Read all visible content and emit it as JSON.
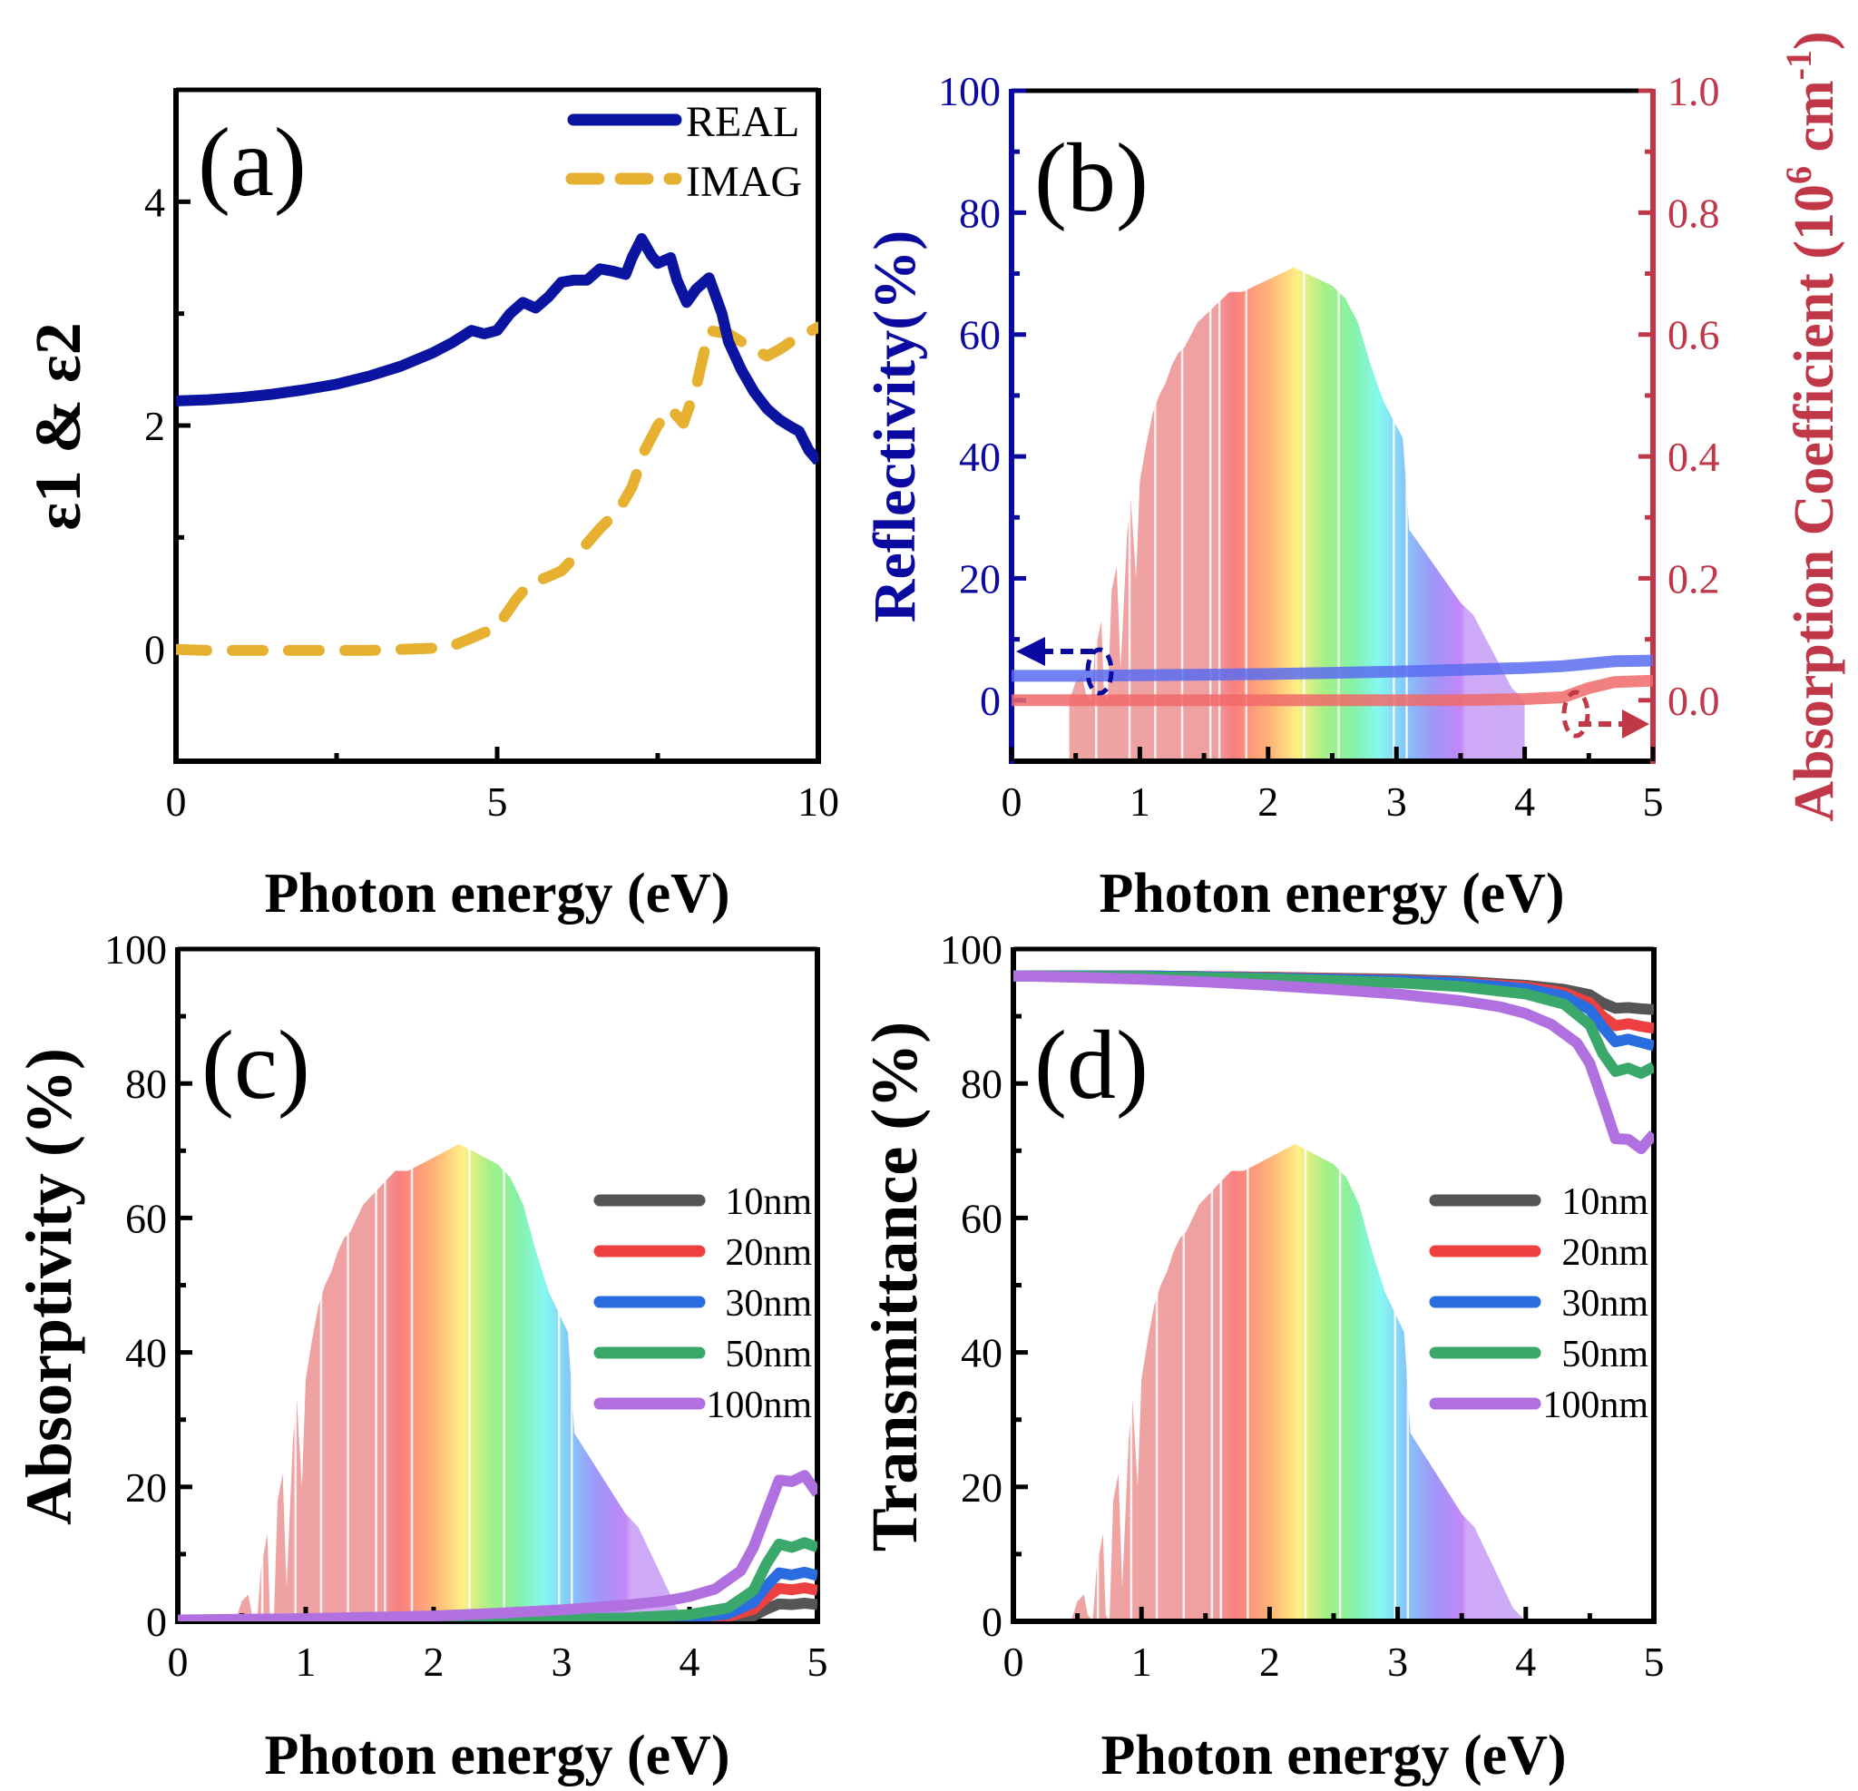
{
  "figure": {
    "colors": {
      "real": "#0a14a0",
      "imag": "#e6b030",
      "reflectivity_axis": "#0a0aa0",
      "absorption_axis": "#c03848",
      "reflectivity_line": "#5a6cf0",
      "absorption_line": "#f06a6a",
      "thickness": {
        "10nm": "#555555",
        "20nm": "#ee4040",
        "30nm": "#2a6de0",
        "50nm": "#3aa86a",
        "100nm": "#b070e0"
      }
    }
  },
  "solar_spectrum": {
    "note_label": "AM1.5 solar spectrum (decorative, rainbow-filled)",
    "x": [
      0.45,
      0.5,
      0.55,
      0.58,
      0.62,
      0.65,
      0.7,
      0.72,
      0.75,
      0.78,
      0.82,
      0.85,
      0.9,
      0.93,
      0.97,
      1.0,
      1.05,
      1.1,
      1.15,
      1.2,
      1.25,
      1.3,
      1.35,
      1.4,
      1.45,
      1.5,
      1.55,
      1.6,
      1.65,
      1.7,
      1.8,
      1.9,
      2.0,
      2.1,
      2.2,
      2.3,
      2.4,
      2.5,
      2.6,
      2.7,
      2.8,
      2.9,
      3.0,
      3.05,
      3.1,
      3.2,
      3.3,
      3.4,
      3.5,
      3.6,
      3.7,
      3.8,
      3.9,
      4.0
    ],
    "y": [
      0,
      3,
      4,
      1,
      0,
      8,
      13,
      1,
      0,
      18,
      22,
      5,
      27,
      33,
      20,
      36,
      42,
      47,
      50,
      52,
      55,
      57,
      58,
      60,
      62,
      63,
      64,
      65,
      66,
      67,
      67,
      68,
      69,
      70,
      71,
      70,
      69,
      68,
      66,
      62,
      55,
      49,
      45,
      43,
      28,
      25,
      22,
      19,
      16,
      14,
      10,
      6,
      2,
      0
    ]
  },
  "chart_data": [
    {
      "panel": "a",
      "type": "line",
      "title": "",
      "panel_label": "(a)",
      "xlabel": "Photon energy (eV)",
      "ylabel": "ε1 & ε2",
      "xlim": [
        0,
        10
      ],
      "ylim": [
        -1,
        5
      ],
      "xticks": [
        0,
        5,
        10
      ],
      "xtick_labels": [
        "0",
        "5",
        "10"
      ],
      "xticks_minor": [
        2.5,
        7.5
      ],
      "yticks": [
        0,
        2,
        4
      ],
      "ytick_labels": [
        "0",
        "2",
        "4"
      ],
      "yticks_minor": [
        1,
        3
      ],
      "legend": {
        "position": "top-right",
        "entries": [
          "REAL",
          "IMAG"
        ]
      },
      "series": [
        {
          "name": "REAL",
          "style": "solid",
          "x": [
            0,
            0.5,
            1,
            1.5,
            2,
            2.5,
            3,
            3.5,
            4,
            4.3,
            4.6,
            4.8,
            5.0,
            5.2,
            5.4,
            5.6,
            5.8,
            6.0,
            6.2,
            6.4,
            6.6,
            6.8,
            7.0,
            7.1,
            7.25,
            7.4,
            7.5,
            7.7,
            7.8,
            7.95,
            8.1,
            8.3,
            8.5,
            8.6,
            8.8,
            9.0,
            9.2,
            9.4,
            9.6,
            9.7,
            9.85,
            10
          ],
          "y": [
            2.22,
            2.23,
            2.25,
            2.28,
            2.32,
            2.37,
            2.44,
            2.53,
            2.65,
            2.74,
            2.85,
            2.82,
            2.85,
            3.0,
            3.1,
            3.05,
            3.15,
            3.28,
            3.3,
            3.3,
            3.4,
            3.38,
            3.35,
            3.5,
            3.67,
            3.52,
            3.45,
            3.5,
            3.3,
            3.1,
            3.22,
            3.32,
            3.0,
            2.75,
            2.5,
            2.3,
            2.15,
            2.05,
            1.98,
            1.95,
            1.78,
            1.68
          ]
        },
        {
          "name": "IMAG",
          "style": "dashed",
          "x": [
            0,
            0.5,
            1,
            1.5,
            2,
            2.5,
            3,
            3.5,
            4,
            4.3,
            4.6,
            5.0,
            5.3,
            5.5,
            5.8,
            6.0,
            6.3,
            6.6,
            6.9,
            7.1,
            7.3,
            7.5,
            7.7,
            7.9,
            8.1,
            8.3,
            8.6,
            8.8,
            9.0,
            9.2,
            9.4,
            9.6,
            9.8,
            10
          ],
          "y": [
            0,
            -0.01,
            -0.01,
            -0.01,
            -0.01,
            -0.01,
            -0.01,
            0.0,
            0.01,
            0.03,
            0.1,
            0.2,
            0.45,
            0.58,
            0.65,
            0.7,
            0.88,
            1.08,
            1.25,
            1.45,
            1.78,
            2.0,
            2.15,
            2.02,
            2.35,
            2.85,
            2.82,
            2.75,
            2.68,
            2.62,
            2.68,
            2.76,
            2.82,
            2.88
          ]
        }
      ]
    },
    {
      "panel": "b",
      "type": "line",
      "title": "",
      "panel_label": "(b)",
      "xlabel": "Photon energy (eV)",
      "ylabel": "Reflectivity(%)",
      "ylabel_right": "Absorption Coefficient (10⁶ cm⁻¹)",
      "ylabel_right_parts": {
        "pre": "Absorption Coefficient (10",
        "sup1": "6",
        "mid": " cm",
        "sup2": "-1",
        "post": ")"
      },
      "xlim": [
        0,
        5
      ],
      "ylim": [
        -10,
        100
      ],
      "ylim_right": [
        -0.1,
        1.0
      ],
      "xticks": [
        0,
        1,
        2,
        3,
        4,
        5
      ],
      "xtick_labels": [
        "0",
        "1",
        "2",
        "3",
        "4",
        "5"
      ],
      "xticks_minor": [
        0.5,
        1.5,
        2.5,
        3.5,
        4.5
      ],
      "yticks": [
        0,
        20,
        40,
        60,
        80,
        100
      ],
      "ytick_labels": [
        "0",
        "20",
        "40",
        "60",
        "80",
        "100"
      ],
      "yticks_minor": [
        10,
        30,
        50,
        70,
        90
      ],
      "yticks_right": [
        0.0,
        0.2,
        0.4,
        0.6,
        0.8,
        1.0
      ],
      "ytick_labels_right": [
        "0.0",
        "0.2",
        "0.4",
        "0.6",
        "0.8",
        "1.0"
      ],
      "yticks_right_minor": [
        0.1,
        0.3,
        0.5,
        0.7,
        0.9
      ],
      "annotations": [
        "left arrow marks Reflectivity curve → left axis",
        "right arrow marks Absorption curve → right axis"
      ],
      "series": [
        {
          "name": "Reflectivity",
          "axis": "left",
          "x": [
            0,
            0.5,
            1,
            1.5,
            2,
            2.5,
            3,
            3.5,
            4,
            4.3,
            4.5,
            4.7,
            5
          ],
          "y": [
            4.0,
            4.0,
            4.1,
            4.2,
            4.3,
            4.5,
            4.7,
            5.0,
            5.3,
            5.6,
            6.0,
            6.4,
            6.5
          ]
        },
        {
          "name": "Absorption coefficient",
          "axis": "right",
          "x": [
            0,
            0.5,
            1,
            1.5,
            2,
            2.5,
            3,
            3.5,
            4,
            4.3,
            4.5,
            4.7,
            5
          ],
          "y": [
            0.0,
            0.0,
            0.0,
            0.0,
            0.0,
            0.0,
            0.0,
            0.0,
            0.002,
            0.005,
            0.02,
            0.03,
            0.032
          ]
        }
      ]
    },
    {
      "panel": "c",
      "type": "line",
      "title": "",
      "panel_label": "(c)",
      "xlabel": "Photon energy (eV)",
      "ylabel": "Absorptivity (%)",
      "xlim": [
        0,
        5
      ],
      "ylim": [
        0,
        100
      ],
      "xticks": [
        0,
        1,
        2,
        3,
        4,
        5
      ],
      "xtick_labels": [
        "0",
        "1",
        "2",
        "3",
        "4",
        "5"
      ],
      "xticks_minor": [
        0.5,
        1.5,
        2.5,
        3.5,
        4.5
      ],
      "yticks": [
        0,
        20,
        40,
        60,
        80,
        100
      ],
      "ytick_labels": [
        "0",
        "20",
        "40",
        "60",
        "80",
        "100"
      ],
      "yticks_minor": [
        10,
        30,
        50,
        70,
        90
      ],
      "legend": {
        "position": "center-right",
        "entries": [
          "10nm",
          "20nm",
          "30nm",
          "50nm",
          "100nm"
        ]
      },
      "series": [
        {
          "name": "10nm",
          "x": [
            0,
            1,
            2,
            3,
            3.5,
            4,
            4.3,
            4.5,
            4.6,
            4.7,
            4.8,
            4.9,
            5
          ],
          "y": [
            0,
            0,
            0.02,
            0.05,
            0.08,
            0.15,
            0.3,
            0.8,
            1.8,
            2.6,
            2.5,
            2.7,
            2.5
          ]
        },
        {
          "name": "20nm",
          "x": [
            0,
            1,
            2,
            3,
            3.5,
            4,
            4.3,
            4.5,
            4.6,
            4.7,
            4.8,
            4.9,
            5
          ],
          "y": [
            0,
            0.02,
            0.05,
            0.1,
            0.16,
            0.3,
            0.7,
            1.8,
            3.5,
            4.9,
            4.7,
            5.0,
            4.6
          ]
        },
        {
          "name": "30nm",
          "x": [
            0,
            1,
            2,
            3,
            3.5,
            4,
            4.3,
            4.5,
            4.6,
            4.7,
            4.8,
            4.9,
            5
          ],
          "y": [
            0,
            0.03,
            0.08,
            0.15,
            0.25,
            0.5,
            1.1,
            2.8,
            5.2,
            7.2,
            6.9,
            7.3,
            6.8
          ]
        },
        {
          "name": "50nm",
          "x": [
            0,
            1,
            2,
            3,
            3.5,
            4,
            4.3,
            4.5,
            4.6,
            4.7,
            4.8,
            4.9,
            5
          ],
          "y": [
            0,
            0.05,
            0.12,
            0.3,
            0.5,
            1.0,
            2.0,
            4.6,
            8.5,
            11.5,
            11.0,
            11.7,
            11.0
          ]
        },
        {
          "name": "100nm",
          "x": [
            0,
            0.5,
            1,
            1.5,
            2,
            2.5,
            3,
            3.5,
            3.8,
            4,
            4.2,
            4.4,
            4.5,
            4.6,
            4.7,
            4.8,
            4.9,
            5
          ],
          "y": [
            0.2,
            0.3,
            0.4,
            0.6,
            0.8,
            1.2,
            1.7,
            2.4,
            3.0,
            3.7,
            4.8,
            7.5,
            11,
            16,
            21,
            20.8,
            21.7,
            19
          ]
        }
      ]
    },
    {
      "panel": "d",
      "type": "line",
      "title": "",
      "panel_label": "(d)",
      "xlabel": "Photon energy (eV)",
      "ylabel": "Transmittance (%)",
      "xlim": [
        0,
        5
      ],
      "ylim": [
        0,
        100
      ],
      "xticks": [
        0,
        1,
        2,
        3,
        4,
        5
      ],
      "xtick_labels": [
        "0",
        "1",
        "2",
        "3",
        "4",
        "5"
      ],
      "xticks_minor": [
        0.5,
        1.5,
        2.5,
        3.5,
        4.5
      ],
      "yticks": [
        0,
        20,
        40,
        60,
        80,
        100
      ],
      "ytick_labels": [
        "0",
        "20",
        "40",
        "60",
        "80",
        "100"
      ],
      "yticks_minor": [
        10,
        30,
        50,
        70,
        90
      ],
      "legend": {
        "position": "center-right",
        "entries": [
          "10nm",
          "20nm",
          "30nm",
          "50nm",
          "100nm"
        ]
      },
      "series": [
        {
          "name": "10nm",
          "x": [
            0,
            1,
            2,
            3,
            3.5,
            4,
            4.3,
            4.5,
            4.6,
            4.7,
            4.8,
            4.9,
            5
          ],
          "y": [
            96,
            96,
            95.8,
            95.5,
            95.2,
            94.6,
            94,
            93.2,
            92,
            91.2,
            91.3,
            91.1,
            91.0
          ]
        },
        {
          "name": "20nm",
          "x": [
            0,
            1,
            2,
            3,
            3.5,
            4,
            4.3,
            4.5,
            4.6,
            4.7,
            4.8,
            4.9,
            5
          ],
          "y": [
            96,
            96,
            95.8,
            95.4,
            95.0,
            94.4,
            93.5,
            92,
            90,
            88.6,
            88.9,
            88.5,
            88.2
          ]
        },
        {
          "name": "30nm",
          "x": [
            0,
            1,
            2,
            3,
            3.5,
            4,
            4.3,
            4.5,
            4.6,
            4.7,
            4.8,
            4.9,
            5
          ],
          "y": [
            96,
            96,
            95.7,
            95.3,
            94.9,
            94.1,
            93,
            91,
            88.4,
            86.2,
            86.6,
            86.1,
            85.6
          ]
        },
        {
          "name": "50nm",
          "x": [
            0,
            1,
            2,
            3,
            3.5,
            4,
            4.3,
            4.5,
            4.6,
            4.7,
            4.8,
            4.9,
            5
          ],
          "y": [
            96,
            95.9,
            95.6,
            95.0,
            94.4,
            93.3,
            91.8,
            88.7,
            84.5,
            81.8,
            82.3,
            81.5,
            82.5
          ]
        },
        {
          "name": "100nm",
          "x": [
            0,
            0.5,
            1,
            1.5,
            2,
            2.5,
            3,
            3.5,
            3.8,
            4,
            4.2,
            4.4,
            4.5,
            4.6,
            4.7,
            4.8,
            4.9,
            5
          ],
          "y": [
            96,
            95.8,
            95.5,
            95.1,
            94.6,
            94,
            93.3,
            92.3,
            91.4,
            90.4,
            88.8,
            86,
            83,
            77.5,
            71.8,
            71.7,
            70.3,
            72.5
          ]
        }
      ]
    }
  ]
}
